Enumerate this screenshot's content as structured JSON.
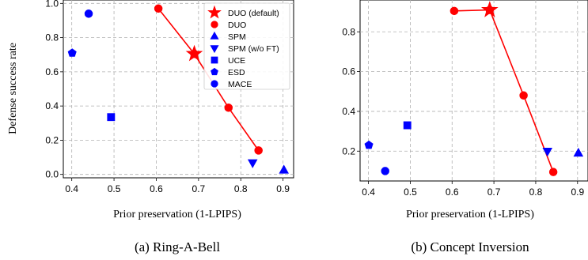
{
  "chart_data": [
    {
      "type": "scatter",
      "caption": "(a) Ring-A-Bell",
      "xlabel": "Prior preservation (1-LPIPS)",
      "ylabel": "Defense success rate",
      "xlim": [
        0.38,
        0.925
      ],
      "ylim": [
        -0.02,
        1.02
      ],
      "xticks": [
        "0.4",
        "0.5",
        "0.6",
        "0.7",
        "0.8",
        "0.9"
      ],
      "yticks": [
        "0.0",
        "0.2",
        "0.4",
        "0.6",
        "0.8",
        "1.0"
      ],
      "grid": true,
      "legend_position": "top-right",
      "series": [
        {
          "name": "DUO (default)",
          "marker": "star",
          "color": "#ff0000",
          "points": [
            [
              0.69,
              0.705
            ]
          ]
        },
        {
          "name": "DUO",
          "marker": "circle",
          "color": "#ff0000",
          "line": true,
          "points": [
            [
              0.605,
              0.97
            ],
            [
              0.69,
              0.705
            ],
            [
              0.771,
              0.39
            ],
            [
              0.842,
              0.14
            ]
          ]
        },
        {
          "name": "SPM",
          "marker": "triangle-up",
          "color": "#0000ff",
          "points": [
            [
              0.902,
              0.025
            ]
          ]
        },
        {
          "name": "SPM (w/o FT)",
          "marker": "triangle-down",
          "color": "#0000ff",
          "points": [
            [
              0.828,
              0.068
            ]
          ]
        },
        {
          "name": "UCE",
          "marker": "square",
          "color": "#0000ff",
          "points": [
            [
              0.493,
              0.335
            ]
          ]
        },
        {
          "name": "ESD",
          "marker": "pentagon",
          "color": "#0000ff",
          "points": [
            [
              0.401,
              0.71
            ]
          ]
        },
        {
          "name": "MACE",
          "marker": "circle",
          "color": "#0000ff",
          "points": [
            [
              0.44,
              0.94
            ]
          ]
        }
      ]
    },
    {
      "type": "scatter",
      "caption": "(b) Concept Inversion",
      "xlabel": "Prior preservation (1-LPIPS)",
      "ylabel": "",
      "xlim": [
        0.38,
        0.925
      ],
      "ylim": [
        0.05,
        0.96
      ],
      "xticks": [
        "0.4",
        "0.5",
        "0.6",
        "0.7",
        "0.8",
        "0.9"
      ],
      "yticks": [
        "0.2",
        "0.4",
        "0.6",
        "0.8"
      ],
      "grid": true,
      "series": [
        {
          "name": "DUO (default)",
          "marker": "star",
          "color": "#ff0000",
          "points": [
            [
              0.69,
              0.91
            ]
          ]
        },
        {
          "name": "DUO",
          "marker": "circle",
          "color": "#ff0000",
          "line": true,
          "points": [
            [
              0.605,
              0.905
            ],
            [
              0.69,
              0.91
            ],
            [
              0.771,
              0.48
            ],
            [
              0.842,
              0.095
            ]
          ]
        },
        {
          "name": "SPM",
          "marker": "triangle-up",
          "color": "#0000ff",
          "points": [
            [
              0.902,
              0.19
            ]
          ]
        },
        {
          "name": "SPM (w/o FT)",
          "marker": "triangle-down",
          "color": "#0000ff",
          "points": [
            [
              0.828,
              0.2
            ]
          ]
        },
        {
          "name": "UCE",
          "marker": "square",
          "color": "#0000ff",
          "points": [
            [
              0.493,
              0.33
            ]
          ]
        },
        {
          "name": "ESD",
          "marker": "pentagon",
          "color": "#0000ff",
          "points": [
            [
              0.401,
              0.23
            ]
          ]
        },
        {
          "name": "MACE",
          "marker": "circle",
          "color": "#0000ff",
          "points": [
            [
              0.44,
              0.1
            ]
          ]
        }
      ]
    }
  ]
}
